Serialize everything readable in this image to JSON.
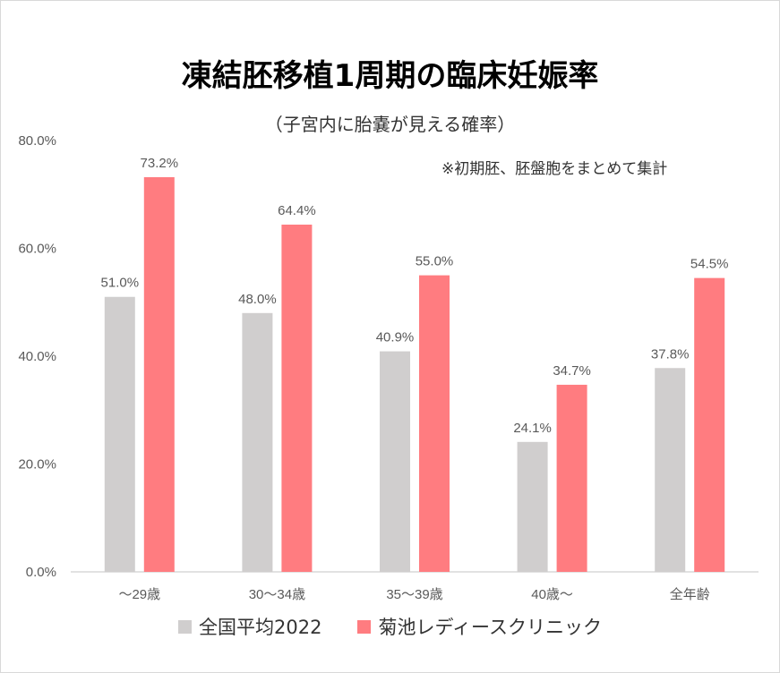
{
  "chart_data": {
    "type": "bar",
    "title": "凍結胚移植1周期の臨床妊娠率",
    "subtitle": "（子宮内に胎嚢が見える確率）",
    "note": "※初期胚、胚盤胞をまとめて集計",
    "categories": [
      "～29歳",
      "30～34歳",
      "35～39歳",
      "40歳～",
      "全年齢"
    ],
    "series": [
      {
        "name": "全国平均2022",
        "color": "#d0cece",
        "values": [
          51.0,
          48.0,
          40.9,
          24.1,
          37.8
        ],
        "labels": [
          "51.0%",
          "48.0%",
          "40.9%",
          "24.1%",
          "37.8%"
        ]
      },
      {
        "name": "菊池レディースクリニック",
        "color": "#ff7c80",
        "values": [
          73.2,
          64.4,
          55.0,
          34.7,
          54.5
        ],
        "labels": [
          "73.2%",
          "64.4%",
          "55.0%",
          "34.7%",
          "54.5%"
        ]
      }
    ],
    "ylim": [
      0,
      80
    ],
    "yticks": [
      "0.0%",
      "20.0%",
      "40.0%",
      "60.0%",
      "80.0%"
    ],
    "ytick_values": [
      0,
      20,
      40,
      60,
      80
    ],
    "grid": false,
    "legend_position": "bottom"
  }
}
